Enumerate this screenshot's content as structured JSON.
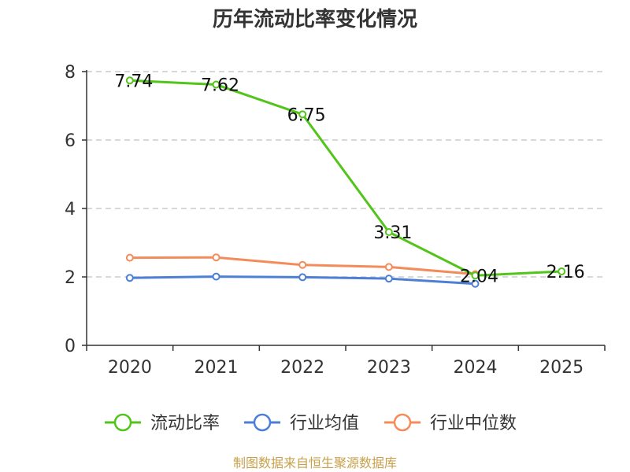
{
  "chart_data": {
    "type": "line",
    "title": "历年流动比率变化情况",
    "categories": [
      "2020",
      "2021",
      "2022",
      "2023",
      "2024",
      "2025"
    ],
    "ylim": [
      0,
      8
    ],
    "yticks": [
      0,
      2,
      4,
      6,
      8
    ],
    "grid": true,
    "legend_position": "bottom",
    "series": [
      {
        "name": "流动比率",
        "color": "#52c41a",
        "values": [
          7.74,
          7.62,
          6.75,
          3.31,
          2.04,
          2.16
        ],
        "labels": [
          "7.74",
          "7.62",
          "6.75",
          "3.31",
          "2.04",
          "2.16"
        ]
      },
      {
        "name": "行业均值",
        "color": "#4e7fd6",
        "values": [
          1.97,
          2.01,
          1.99,
          1.95,
          1.8,
          null
        ]
      },
      {
        "name": "行业中位数",
        "color": "#f48b5b",
        "values": [
          2.56,
          2.57,
          2.35,
          2.29,
          2.08,
          null
        ]
      }
    ],
    "source": "制图数据来自恒生聚源数据库"
  }
}
